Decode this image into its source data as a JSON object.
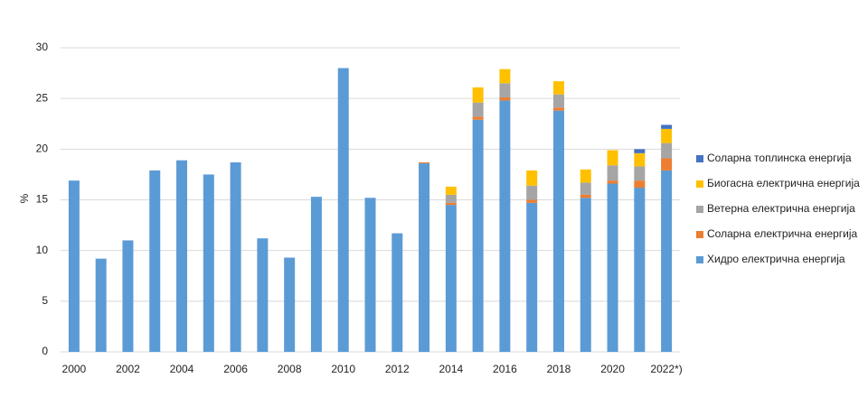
{
  "chart_data": {
    "type": "stacked_bar",
    "ylabel": "%",
    "categories": [
      "2000",
      null,
      "2002",
      null,
      "2004",
      null,
      "2006",
      null,
      "2008",
      null,
      "2010",
      null,
      "2012",
      null,
      "2014",
      null,
      "2016",
      null,
      "2018",
      null,
      "2020",
      null,
      "2022*)"
    ],
    "series": [
      {
        "name": "Хидро електрична енергија",
        "color": "#5b9bd5",
        "values": [
          16.9,
          9.2,
          11.0,
          17.9,
          18.9,
          17.5,
          18.7,
          11.2,
          9.3,
          15.3,
          28.0,
          15.2,
          11.7,
          18.6,
          14.5,
          22.9,
          24.8,
          14.7,
          23.8,
          15.2,
          16.6,
          16.2,
          17.9
        ]
      },
      {
        "name": "Соларна електрична енергија",
        "color": "#ed7d31",
        "values": [
          null,
          null,
          null,
          null,
          null,
          null,
          null,
          null,
          null,
          null,
          null,
          null,
          null,
          0.1,
          0.2,
          0.3,
          0.3,
          0.3,
          0.3,
          0.3,
          0.3,
          0.7,
          1.2
        ]
      },
      {
        "name": "Ветерна електрична енергија",
        "color": "#a5a5a5",
        "values": [
          null,
          null,
          null,
          null,
          null,
          null,
          null,
          null,
          null,
          null,
          null,
          null,
          null,
          null,
          0.8,
          1.4,
          1.4,
          1.4,
          1.3,
          1.2,
          1.5,
          1.4,
          1.5
        ]
      },
      {
        "name": "Биогасна електрична енергија",
        "color": "#ffc000",
        "values": [
          null,
          null,
          null,
          null,
          null,
          null,
          null,
          null,
          null,
          null,
          null,
          null,
          null,
          null,
          0.8,
          1.5,
          1.4,
          1.5,
          1.3,
          1.3,
          1.5,
          1.3,
          1.4
        ]
      },
      {
        "name": "Соларна топлинска енергија",
        "color": "#4472c4",
        "values": [
          null,
          null,
          null,
          null,
          null,
          null,
          null,
          null,
          null,
          null,
          null,
          null,
          null,
          null,
          null,
          null,
          null,
          null,
          null,
          null,
          null,
          0.4,
          0.4
        ]
      }
    ],
    "ylim": [
      0,
      30
    ],
    "yticks": [
      0,
      5,
      10,
      15,
      20,
      25,
      30
    ],
    "grid": true,
    "legend": "right"
  }
}
